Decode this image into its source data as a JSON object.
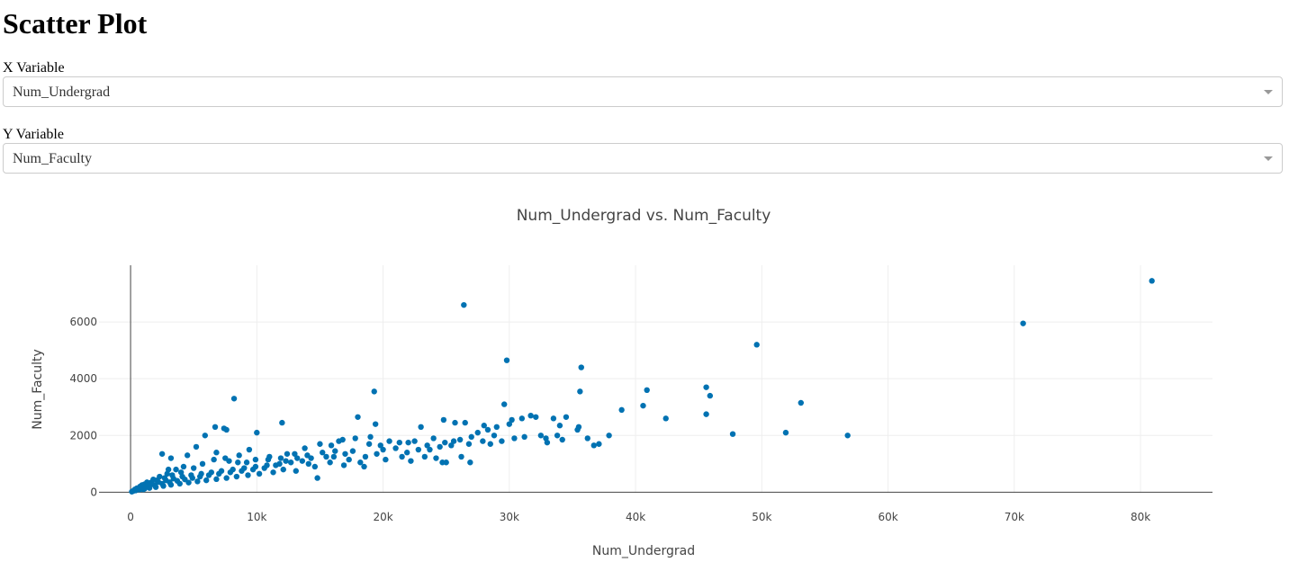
{
  "page": {
    "title": "Scatter Plot"
  },
  "controls": {
    "x": {
      "label": "X Variable",
      "value": "Num_Undergrad"
    },
    "y": {
      "label": "Y Variable",
      "value": "Num_Faculty"
    }
  },
  "colors": {
    "marker": "#0072b2",
    "grid": "#eeeeee",
    "axis": "#444444"
  },
  "icons": {
    "dropdown": "chevron-down-icon"
  },
  "chart_data": {
    "type": "scatter",
    "title": "Num_Undergrad vs. Num_Faculty",
    "xlabel": "Num_Undergrad",
    "ylabel": "Num_Faculty",
    "xlim": [
      -2500,
      85700
    ],
    "ylim": [
      -20,
      8000
    ],
    "xticks": [
      0,
      10000,
      20000,
      30000,
      40000,
      50000,
      60000,
      70000,
      80000
    ],
    "xtick_labels": [
      "0",
      "10k",
      "20k",
      "30k",
      "40k",
      "50k",
      "60k",
      "70k",
      "80k"
    ],
    "yticks": [
      0,
      2000,
      4000,
      6000
    ],
    "ytick_labels": [
      "0",
      "2000",
      "4000",
      "6000"
    ],
    "grid": true,
    "series": [
      {
        "points": [
          [
            80900,
            7450
          ],
          [
            70700,
            5950
          ],
          [
            49600,
            5200
          ],
          [
            26400,
            6600
          ],
          [
            29800,
            4650
          ],
          [
            35700,
            4400
          ],
          [
            35600,
            3550
          ],
          [
            19300,
            3550
          ],
          [
            8200,
            3300
          ],
          [
            40900,
            3600
          ],
          [
            45600,
            3700
          ],
          [
            45900,
            3400
          ],
          [
            53100,
            3150
          ],
          [
            29600,
            3100
          ],
          [
            40600,
            3050
          ],
          [
            38900,
            2900
          ],
          [
            45600,
            2750
          ],
          [
            42400,
            2600
          ],
          [
            31700,
            2700
          ],
          [
            32100,
            2650
          ],
          [
            31000,
            2600
          ],
          [
            33500,
            2600
          ],
          [
            34500,
            2650
          ],
          [
            30200,
            2550
          ],
          [
            30000,
            2400
          ],
          [
            34000,
            2350
          ],
          [
            35500,
            2300
          ],
          [
            26500,
            2450
          ],
          [
            24800,
            2550
          ],
          [
            25700,
            2450
          ],
          [
            28000,
            2350
          ],
          [
            29000,
            2300
          ],
          [
            23000,
            2300
          ],
          [
            19400,
            2400
          ],
          [
            18000,
            2650
          ],
          [
            12000,
            2450
          ],
          [
            7400,
            2250
          ],
          [
            6700,
            2300
          ],
          [
            7600,
            2200
          ],
          [
            5900,
            2000
          ],
          [
            10000,
            2100
          ],
          [
            47700,
            2050
          ],
          [
            51900,
            2100
          ],
          [
            56800,
            2000
          ],
          [
            37900,
            2000
          ],
          [
            37100,
            1700
          ],
          [
            36700,
            1650
          ],
          [
            35400,
            2200
          ],
          [
            33800,
            2000
          ],
          [
            32900,
            1900
          ],
          [
            31200,
            1950
          ],
          [
            30400,
            1900
          ],
          [
            29400,
            1800
          ],
          [
            28500,
            1700
          ],
          [
            27900,
            1800
          ],
          [
            26800,
            1700
          ],
          [
            25400,
            1650
          ],
          [
            24500,
            1600
          ],
          [
            23700,
            1500
          ],
          [
            22800,
            1500
          ],
          [
            21900,
            1400
          ],
          [
            21000,
            1550
          ],
          [
            20000,
            1500
          ],
          [
            19500,
            1350
          ],
          [
            18600,
            1250
          ],
          [
            17600,
            1450
          ],
          [
            17000,
            1350
          ],
          [
            16100,
            1250
          ],
          [
            15200,
            1400
          ],
          [
            14300,
            1200
          ],
          [
            13600,
            1100
          ],
          [
            12700,
            1050
          ],
          [
            11800,
            1000
          ],
          [
            10800,
            950
          ],
          [
            9900,
            900
          ],
          [
            9000,
            850
          ],
          [
            8100,
            800
          ],
          [
            7200,
            750
          ],
          [
            6400,
            700
          ],
          [
            5600,
            650
          ],
          [
            4800,
            600
          ],
          [
            4100,
            550
          ],
          [
            3400,
            480
          ],
          [
            2800,
            420
          ],
          [
            2200,
            360
          ],
          [
            1700,
            300
          ],
          [
            1200,
            240
          ],
          [
            800,
            180
          ],
          [
            500,
            140
          ],
          [
            300,
            80
          ],
          [
            200,
            40
          ],
          [
            100,
            20
          ],
          [
            1000,
            100
          ],
          [
            3000,
            800
          ],
          [
            4500,
            1300
          ],
          [
            2500,
            1350
          ],
          [
            3200,
            1200
          ],
          [
            5200,
            1600
          ],
          [
            6800,
            1400
          ],
          [
            7800,
            1100
          ],
          [
            8600,
            1300
          ],
          [
            9400,
            1500
          ],
          [
            11000,
            1250
          ],
          [
            12400,
            1350
          ],
          [
            13800,
            1550
          ],
          [
            15000,
            1700
          ],
          [
            16500,
            1800
          ],
          [
            17800,
            1900
          ],
          [
            19000,
            1950
          ],
          [
            20500,
            1800
          ],
          [
            22000,
            1750
          ],
          [
            24000,
            1900
          ],
          [
            25600,
            1800
          ],
          [
            27000,
            1950
          ],
          [
            28800,
            2000
          ],
          [
            26200,
            1250
          ],
          [
            25000,
            1050
          ],
          [
            24200,
            1200
          ],
          [
            23300,
            1250
          ],
          [
            22200,
            1100
          ],
          [
            21500,
            1250
          ],
          [
            20200,
            1150
          ],
          [
            18200,
            1050
          ],
          [
            16900,
            950
          ],
          [
            15800,
            1050
          ],
          [
            14600,
            900
          ],
          [
            13100,
            750
          ],
          [
            12100,
            800
          ],
          [
            11300,
            700
          ],
          [
            10200,
            650
          ],
          [
            9300,
            600
          ],
          [
            8400,
            550
          ],
          [
            7600,
            500
          ],
          [
            6800,
            460
          ],
          [
            6000,
            420
          ],
          [
            5300,
            380
          ],
          [
            4600,
            340
          ],
          [
            3900,
            300
          ],
          [
            3200,
            260
          ],
          [
            2600,
            220
          ],
          [
            2000,
            180
          ],
          [
            1500,
            150
          ],
          [
            1100,
            120
          ],
          [
            700,
            90
          ],
          [
            400,
            60
          ],
          [
            14800,
            500
          ],
          [
            26900,
            1050
          ],
          [
            24700,
            1050
          ],
          [
            18500,
            900
          ],
          [
            17300,
            1150
          ],
          [
            16200,
            1450
          ],
          [
            15500,
            1250
          ],
          [
            14100,
            1000
          ],
          [
            13200,
            1200
          ],
          [
            12300,
            1100
          ],
          [
            11500,
            950
          ],
          [
            10600,
            850
          ],
          [
            9700,
            800
          ],
          [
            8800,
            750
          ],
          [
            7900,
            700
          ],
          [
            7000,
            650
          ],
          [
            6200,
            600
          ],
          [
            5500,
            550
          ],
          [
            4900,
            500
          ],
          [
            4300,
            450
          ],
          [
            3700,
            400
          ],
          [
            3100,
            350
          ],
          [
            2500,
            300
          ],
          [
            1900,
            250
          ],
          [
            1400,
            200
          ],
          [
            1000,
            160
          ],
          [
            600,
            120
          ],
          [
            350,
            100
          ],
          [
            9900,
            1150
          ],
          [
            10900,
            1150
          ],
          [
            11900,
            1200
          ],
          [
            13000,
            1350
          ],
          [
            14000,
            1300
          ],
          [
            15900,
            1650
          ],
          [
            16800,
            1850
          ],
          [
            18900,
            1700
          ],
          [
            19800,
            1650
          ],
          [
            21300,
            1750
          ],
          [
            22500,
            1800
          ],
          [
            23500,
            1650
          ],
          [
            24900,
            1750
          ],
          [
            26100,
            1850
          ],
          [
            27500,
            2100
          ],
          [
            28300,
            2200
          ],
          [
            32500,
            2000
          ],
          [
            33000,
            1750
          ],
          [
            34200,
            1850
          ],
          [
            36200,
            1900
          ],
          [
            5700,
            1000
          ],
          [
            6600,
            1150
          ],
          [
            7500,
            1200
          ],
          [
            8500,
            1050
          ],
          [
            9200,
            1050
          ],
          [
            4200,
            900
          ],
          [
            3600,
            800
          ],
          [
            2900,
            650
          ],
          [
            2300,
            550
          ],
          [
            1800,
            450
          ],
          [
            1300,
            350
          ],
          [
            900,
            250
          ],
          [
            5000,
            850
          ],
          [
            4000,
            700
          ],
          [
            3300,
            600
          ],
          [
            2700,
            500
          ],
          [
            2100,
            420
          ],
          [
            1600,
            340
          ],
          [
            1100,
            280
          ],
          [
            750,
            200
          ]
        ]
      }
    ]
  }
}
